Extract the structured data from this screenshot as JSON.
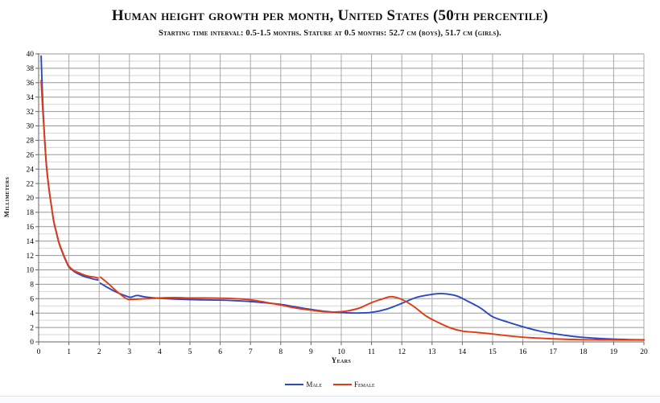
{
  "chart_data": {
    "type": "line",
    "title": "Human height growth per month, United States (50th percentile)",
    "subtitle": "Starting time interval: 0.5-1.5 months. Stature at 0.5 months: 52.7 cm (boys), 51.7 cm (girls).",
    "xlabel": "Years",
    "ylabel": "Millimeters",
    "xlim": [
      0,
      20
    ],
    "ylim": [
      0,
      40
    ],
    "x_tick_step": 1,
    "y_label_step": 2,
    "y_minor_step": 1,
    "grid": "on",
    "legend_position": "bottom-center",
    "series": [
      {
        "name": "Male",
        "color": "#2b49c5",
        "segments": [
          [
            [
              0.083,
              39.7
            ],
            [
              0.125,
              34.5
            ],
            [
              0.167,
              30.6
            ],
            [
              0.25,
              25.0
            ],
            [
              0.333,
              21.6
            ],
            [
              0.417,
              19.0
            ],
            [
              0.5,
              16.7
            ],
            [
              0.583,
              15.2
            ],
            [
              0.667,
              13.8
            ],
            [
              0.75,
              12.8
            ],
            [
              0.833,
              11.9
            ],
            [
              0.917,
              11.1
            ],
            [
              1.0,
              10.4
            ],
            [
              1.167,
              9.8
            ],
            [
              1.333,
              9.4
            ],
            [
              1.5,
              9.1
            ],
            [
              1.667,
              8.9
            ],
            [
              1.833,
              8.7
            ],
            [
              1.96,
              8.6
            ]
          ],
          [
            [
              2.04,
              8.15
            ],
            [
              2.3,
              7.5
            ],
            [
              2.6,
              6.85
            ],
            [
              2.9,
              6.35
            ],
            [
              3.05,
              6.2
            ],
            [
              3.25,
              6.45
            ],
            [
              3.5,
              6.25
            ],
            [
              4.0,
              6.05
            ],
            [
              4.5,
              5.95
            ],
            [
              5.0,
              5.87
            ],
            [
              5.5,
              5.83
            ],
            [
              6.0,
              5.8
            ],
            [
              6.5,
              5.72
            ],
            [
              7.0,
              5.6
            ],
            [
              7.5,
              5.42
            ],
            [
              8.0,
              5.2
            ],
            [
              8.5,
              4.85
            ],
            [
              9.0,
              4.5
            ],
            [
              9.5,
              4.22
            ],
            [
              10.0,
              4.07
            ],
            [
              10.5,
              4.0
            ],
            [
              11.0,
              4.1
            ],
            [
              11.5,
              4.55
            ],
            [
              12.0,
              5.35
            ],
            [
              12.5,
              6.2
            ],
            [
              13.0,
              6.6
            ],
            [
              13.35,
              6.7
            ],
            [
              13.8,
              6.4
            ],
            [
              14.2,
              5.6
            ],
            [
              14.6,
              4.7
            ],
            [
              15.0,
              3.5
            ],
            [
              15.5,
              2.75
            ],
            [
              16.0,
              2.1
            ],
            [
              16.5,
              1.55
            ],
            [
              17.0,
              1.15
            ],
            [
              17.5,
              0.85
            ],
            [
              18.0,
              0.62
            ],
            [
              18.5,
              0.48
            ],
            [
              19.0,
              0.38
            ],
            [
              19.5,
              0.32
            ],
            [
              20.0,
              0.28
            ]
          ]
        ]
      },
      {
        "name": "Female",
        "color": "#e23a12",
        "segments": [
          [
            [
              0.083,
              36.3
            ],
            [
              0.125,
              33.0
            ],
            [
              0.167,
              30.2
            ],
            [
              0.25,
              24.8
            ],
            [
              0.333,
              21.5
            ],
            [
              0.417,
              19.0
            ],
            [
              0.5,
              16.8
            ],
            [
              0.583,
              15.3
            ],
            [
              0.667,
              13.9
            ],
            [
              0.75,
              12.9
            ],
            [
              0.833,
              12.0
            ],
            [
              0.917,
              11.2
            ],
            [
              1.0,
              10.5
            ],
            [
              1.167,
              9.9
            ],
            [
              1.333,
              9.6
            ],
            [
              1.5,
              9.3
            ],
            [
              1.667,
              9.1
            ],
            [
              1.833,
              9.0
            ],
            [
              1.96,
              8.85
            ]
          ],
          [
            [
              2.04,
              9.0
            ],
            [
              2.3,
              8.1
            ],
            [
              2.6,
              6.95
            ],
            [
              2.9,
              6.0
            ],
            [
              3.05,
              5.9
            ],
            [
              3.3,
              5.95
            ],
            [
              3.6,
              6.0
            ],
            [
              4.0,
              6.1
            ],
            [
              4.5,
              6.15
            ],
            [
              5.0,
              6.1
            ],
            [
              5.5,
              6.1
            ],
            [
              6.0,
              6.07
            ],
            [
              6.5,
              6.0
            ],
            [
              7.0,
              5.85
            ],
            [
              7.5,
              5.5
            ],
            [
              8.0,
              5.12
            ],
            [
              8.5,
              4.7
            ],
            [
              9.0,
              4.4
            ],
            [
              9.4,
              4.2
            ],
            [
              9.8,
              4.15
            ],
            [
              10.2,
              4.3
            ],
            [
              10.6,
              4.7
            ],
            [
              11.0,
              5.45
            ],
            [
              11.35,
              5.95
            ],
            [
              11.65,
              6.28
            ],
            [
              12.0,
              5.9
            ],
            [
              12.4,
              4.9
            ],
            [
              12.8,
              3.6
            ],
            [
              13.2,
              2.7
            ],
            [
              13.6,
              1.95
            ],
            [
              14.0,
              1.5
            ],
            [
              14.5,
              1.3
            ],
            [
              15.0,
              1.1
            ],
            [
              15.5,
              0.85
            ],
            [
              16.0,
              0.65
            ],
            [
              16.5,
              0.52
            ],
            [
              17.0,
              0.42
            ],
            [
              17.5,
              0.35
            ],
            [
              18.0,
              0.3
            ],
            [
              18.5,
              0.28
            ],
            [
              19.0,
              0.27
            ],
            [
              19.5,
              0.26
            ],
            [
              20.0,
              0.26
            ]
          ]
        ]
      }
    ]
  }
}
